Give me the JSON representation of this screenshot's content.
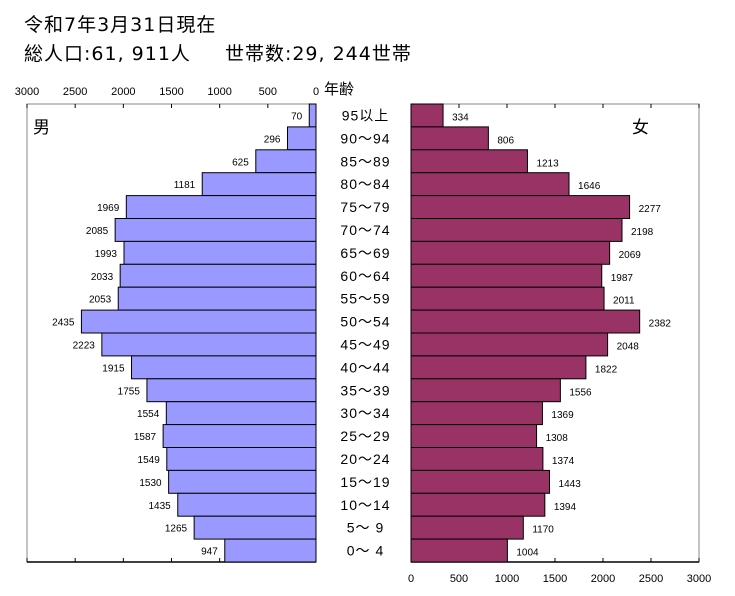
{
  "header": {
    "date": "令和7年3月31日現在",
    "population": "総人口:61, 911人",
    "households": "世帯数:29, 244世帯"
  },
  "chart_data": {
    "type": "bar",
    "subtype": "population-pyramid",
    "age_axis_label": "年齢",
    "categories": [
      "95以上",
      "90～94",
      "85～89",
      "80～84",
      "75～79",
      "70～74",
      "65～69",
      "60～64",
      "55～59",
      "50～54",
      "45～49",
      "40～44",
      "35～39",
      "30～34",
      "25～29",
      "20～24",
      "15～19",
      "10～14",
      "5～ 9",
      "0～ 4"
    ],
    "series": [
      {
        "name": "男",
        "side": "left",
        "color": "#9999ff",
        "values": [
          70,
          296,
          625,
          1181,
          1969,
          2085,
          1993,
          2033,
          2053,
          2435,
          2223,
          1915,
          1755,
          1554,
          1587,
          1549,
          1530,
          1435,
          1265,
          947
        ]
      },
      {
        "name": "女",
        "side": "right",
        "color": "#993366",
        "values": [
          334,
          806,
          1213,
          1646,
          2277,
          2198,
          2069,
          1987,
          2011,
          2382,
          2048,
          1822,
          1556,
          1369,
          1308,
          1374,
          1443,
          1394,
          1170,
          1004
        ]
      }
    ],
    "xlim": [
      0,
      3000
    ],
    "left_ticks": [
      "3000",
      "2500",
      "2000",
      "1500",
      "1000",
      "500",
      "0"
    ],
    "right_ticks": [
      "0",
      "500",
      "1000",
      "1500",
      "2000",
      "2500",
      "3000"
    ],
    "data_labels": true,
    "grid": false
  }
}
